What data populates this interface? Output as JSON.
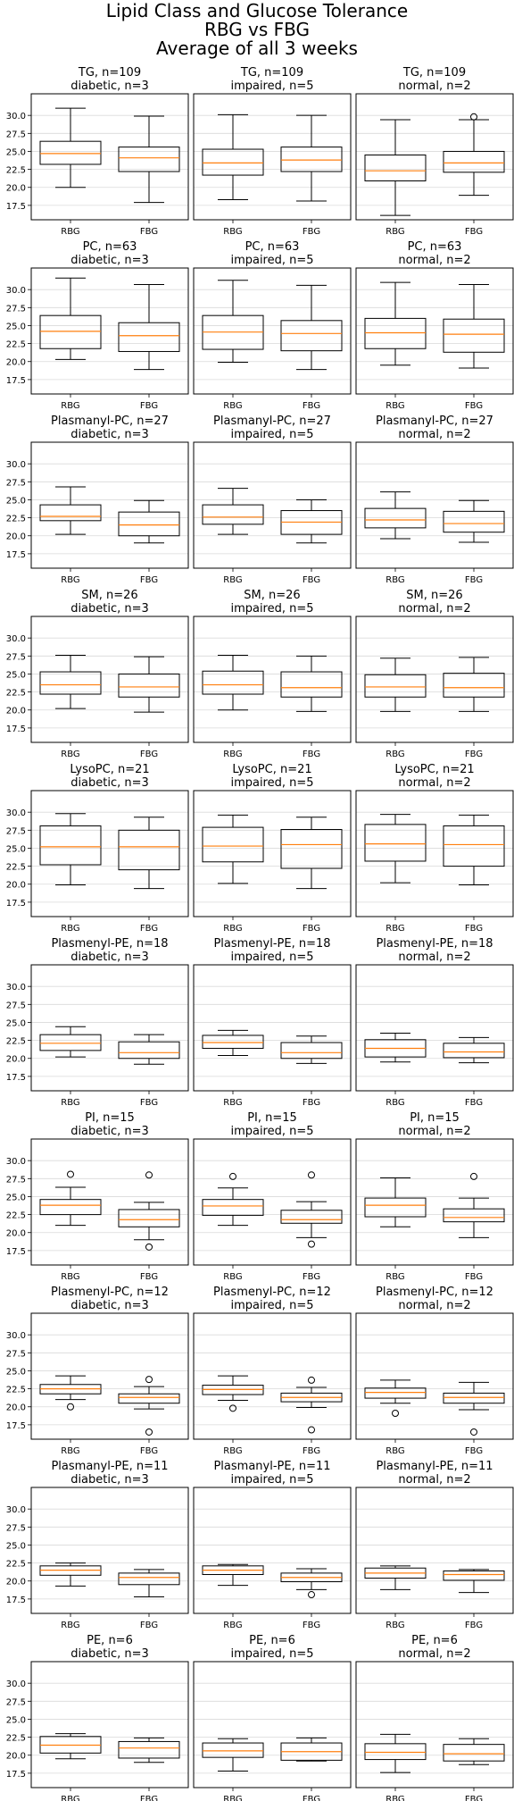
{
  "figure": {
    "title_lines": [
      "Lipid Class and Glucose Tolerance",
      "RBG vs FBG",
      "Average of all 3 weeks"
    ]
  },
  "chart_data": {
    "type": "boxplot",
    "categories": [
      "RBG",
      "FBG"
    ],
    "ylim": [
      15.5,
      33.0
    ],
    "yticks": [
      17.5,
      20.0,
      22.5,
      25.0,
      27.5,
      30.0
    ],
    "ytick_labels": [
      "17.5",
      "20.0",
      "22.5",
      "25.0",
      "27.5",
      "30.0"
    ],
    "grid": "horizontal",
    "colors": {
      "median": "#ff7f0e",
      "box": "#000000",
      "grid": "#d9d9d9",
      "flier": "#000000"
    },
    "groups": [
      "diabetic, n=3",
      "impaired, n=5",
      "normal, n=2"
    ],
    "rows": [
      {
        "label": "TG, n=109",
        "panels": [
          [
            {
              "whislo": 20.0,
              "q1": 23.2,
              "med": 24.7,
              "q3": 26.4,
              "whishi": 31.0,
              "fliers": []
            },
            {
              "whislo": 17.9,
              "q1": 22.2,
              "med": 24.1,
              "q3": 25.6,
              "whishi": 29.9,
              "fliers": []
            }
          ],
          [
            {
              "whislo": 18.3,
              "q1": 21.7,
              "med": 23.4,
              "q3": 25.3,
              "whishi": 30.1,
              "fliers": []
            },
            {
              "whislo": 18.1,
              "q1": 22.2,
              "med": 23.8,
              "q3": 25.6,
              "whishi": 30.0,
              "fliers": []
            }
          ],
          [
            {
              "whislo": 16.1,
              "q1": 20.9,
              "med": 22.3,
              "q3": 24.5,
              "whishi": 29.4,
              "fliers": []
            },
            {
              "whislo": 18.9,
              "q1": 22.1,
              "med": 23.4,
              "q3": 25.0,
              "whishi": 29.4,
              "fliers": [
                29.8
              ]
            }
          ]
        ]
      },
      {
        "label": "PC, n=63",
        "panels": [
          [
            {
              "whislo": 20.3,
              "q1": 21.8,
              "med": 24.2,
              "q3": 26.4,
              "whishi": 31.6,
              "fliers": []
            },
            {
              "whislo": 18.9,
              "q1": 21.4,
              "med": 23.6,
              "q3": 25.4,
              "whishi": 30.7,
              "fliers": []
            }
          ],
          [
            {
              "whislo": 19.9,
              "q1": 21.7,
              "med": 24.1,
              "q3": 26.4,
              "whishi": 31.3,
              "fliers": []
            },
            {
              "whislo": 18.9,
              "q1": 21.5,
              "med": 23.9,
              "q3": 25.7,
              "whishi": 30.6,
              "fliers": []
            }
          ],
          [
            {
              "whislo": 19.5,
              "q1": 21.8,
              "med": 24.0,
              "q3": 26.0,
              "whishi": 31.0,
              "fliers": []
            },
            {
              "whislo": 19.1,
              "q1": 21.3,
              "med": 23.8,
              "q3": 25.9,
              "whishi": 30.7,
              "fliers": []
            }
          ]
        ]
      },
      {
        "label": "Plasmanyl-PC, n=27",
        "panels": [
          [
            {
              "whislo": 20.2,
              "q1": 22.1,
              "med": 22.7,
              "q3": 24.3,
              "whishi": 26.8,
              "fliers": []
            },
            {
              "whislo": 19.0,
              "q1": 20.0,
              "med": 21.5,
              "q3": 23.3,
              "whishi": 24.9,
              "fliers": []
            }
          ],
          [
            {
              "whislo": 20.2,
              "q1": 21.6,
              "med": 22.6,
              "q3": 24.3,
              "whishi": 26.6,
              "fliers": []
            },
            {
              "whislo": 19.0,
              "q1": 20.2,
              "med": 21.9,
              "q3": 23.5,
              "whishi": 25.0,
              "fliers": []
            }
          ],
          [
            {
              "whislo": 19.6,
              "q1": 21.1,
              "med": 22.2,
              "q3": 23.8,
              "whishi": 26.1,
              "fliers": []
            },
            {
              "whislo": 19.1,
              "q1": 20.5,
              "med": 21.7,
              "q3": 23.4,
              "whishi": 24.9,
              "fliers": []
            }
          ]
        ]
      },
      {
        "label": "SM, n=26",
        "panels": [
          [
            {
              "whislo": 20.2,
              "q1": 22.2,
              "med": 23.5,
              "q3": 25.3,
              "whishi": 27.6,
              "fliers": []
            },
            {
              "whislo": 19.7,
              "q1": 21.8,
              "med": 23.2,
              "q3": 25.0,
              "whishi": 27.4,
              "fliers": []
            }
          ],
          [
            {
              "whislo": 20.0,
              "q1": 22.2,
              "med": 23.5,
              "q3": 25.4,
              "whishi": 27.6,
              "fliers": []
            },
            {
              "whislo": 19.8,
              "q1": 21.8,
              "med": 23.1,
              "q3": 25.3,
              "whishi": 27.5,
              "fliers": []
            }
          ],
          [
            {
              "whislo": 19.8,
              "q1": 21.8,
              "med": 23.2,
              "q3": 24.9,
              "whishi": 27.2,
              "fliers": []
            },
            {
              "whislo": 19.8,
              "q1": 21.8,
              "med": 23.1,
              "q3": 25.1,
              "whishi": 27.3,
              "fliers": []
            }
          ]
        ]
      },
      {
        "label": "LysoPC, n=21",
        "panels": [
          [
            {
              "whislo": 19.9,
              "q1": 22.7,
              "med": 25.2,
              "q3": 28.1,
              "whishi": 29.8,
              "fliers": []
            },
            {
              "whislo": 19.4,
              "q1": 22.0,
              "med": 25.2,
              "q3": 27.5,
              "whishi": 29.3,
              "fliers": []
            }
          ],
          [
            {
              "whislo": 20.1,
              "q1": 23.1,
              "med": 25.3,
              "q3": 27.9,
              "whishi": 29.6,
              "fliers": []
            },
            {
              "whislo": 19.4,
              "q1": 22.2,
              "med": 25.5,
              "q3": 27.6,
              "whishi": 29.3,
              "fliers": []
            }
          ],
          [
            {
              "whislo": 20.2,
              "q1": 23.2,
              "med": 25.6,
              "q3": 28.3,
              "whishi": 29.7,
              "fliers": []
            },
            {
              "whislo": 19.9,
              "q1": 22.5,
              "med": 25.5,
              "q3": 28.1,
              "whishi": 29.6,
              "fliers": []
            }
          ]
        ]
      },
      {
        "label": "Plasmenyl-PE, n=18",
        "panels": [
          [
            {
              "whislo": 20.2,
              "q1": 21.1,
              "med": 22.1,
              "q3": 23.3,
              "whishi": 24.4,
              "fliers": []
            },
            {
              "whislo": 19.2,
              "q1": 20.0,
              "med": 20.8,
              "q3": 22.3,
              "whishi": 23.3,
              "fliers": []
            }
          ],
          [
            {
              "whislo": 20.4,
              "q1": 21.4,
              "med": 22.2,
              "q3": 23.2,
              "whishi": 23.9,
              "fliers": []
            },
            {
              "whislo": 19.3,
              "q1": 20.0,
              "med": 20.8,
              "q3": 22.2,
              "whishi": 23.1,
              "fliers": []
            }
          ],
          [
            {
              "whislo": 19.5,
              "q1": 20.2,
              "med": 21.4,
              "q3": 22.6,
              "whishi": 23.5,
              "fliers": []
            },
            {
              "whislo": 19.4,
              "q1": 20.1,
              "med": 20.9,
              "q3": 22.1,
              "whishi": 22.9,
              "fliers": []
            }
          ]
        ]
      },
      {
        "label": "PI, n=15",
        "panels": [
          [
            {
              "whislo": 21.0,
              "q1": 22.5,
              "med": 23.8,
              "q3": 24.6,
              "whishi": 26.3,
              "fliers": [
                28.1
              ]
            },
            {
              "whislo": 19.0,
              "q1": 20.8,
              "med": 21.8,
              "q3": 23.2,
              "whishi": 24.2,
              "fliers": [
                18.0,
                28.0
              ]
            }
          ],
          [
            {
              "whislo": 21.0,
              "q1": 22.4,
              "med": 23.7,
              "q3": 24.6,
              "whishi": 26.2,
              "fliers": [
                27.8
              ]
            },
            {
              "whislo": 19.3,
              "q1": 21.3,
              "med": 21.8,
              "q3": 23.1,
              "whishi": 24.3,
              "fliers": [
                18.4,
                28.0
              ]
            }
          ],
          [
            {
              "whislo": 20.8,
              "q1": 22.2,
              "med": 23.8,
              "q3": 24.8,
              "whishi": 27.6,
              "fliers": []
            },
            {
              "whislo": 19.3,
              "q1": 21.5,
              "med": 22.1,
              "q3": 23.3,
              "whishi": 24.8,
              "fliers": [
                27.8
              ]
            }
          ]
        ]
      },
      {
        "label": "Plasmenyl-PC, n=12",
        "panels": [
          [
            {
              "whislo": 21.0,
              "q1": 21.8,
              "med": 22.5,
              "q3": 23.1,
              "whishi": 24.3,
              "fliers": [
                20.0
              ]
            },
            {
              "whislo": 19.7,
              "q1": 20.5,
              "med": 21.3,
              "q3": 21.8,
              "whishi": 22.8,
              "fliers": [
                16.5,
                23.8
              ]
            }
          ],
          [
            {
              "whislo": 20.9,
              "q1": 21.7,
              "med": 22.4,
              "q3": 23.0,
              "whishi": 24.3,
              "fliers": [
                19.8
              ]
            },
            {
              "whislo": 19.9,
              "q1": 20.7,
              "med": 21.3,
              "q3": 21.9,
              "whishi": 22.7,
              "fliers": [
                16.8,
                23.7
              ]
            }
          ],
          [
            {
              "whislo": 20.5,
              "q1": 21.2,
              "med": 22.0,
              "q3": 22.6,
              "whishi": 23.7,
              "fliers": [
                19.1
              ]
            },
            {
              "whislo": 19.6,
              "q1": 20.5,
              "med": 21.3,
              "q3": 21.9,
              "whishi": 23.4,
              "fliers": [
                16.5
              ]
            }
          ]
        ]
      },
      {
        "label": "Plasmanyl-PE, n=11",
        "panels": [
          [
            {
              "whislo": 19.3,
              "q1": 20.8,
              "med": 21.5,
              "q3": 22.1,
              "whishi": 22.5,
              "fliers": []
            },
            {
              "whislo": 17.8,
              "q1": 19.5,
              "med": 20.5,
              "q3": 21.1,
              "whishi": 21.6,
              "fliers": []
            }
          ],
          [
            {
              "whislo": 19.4,
              "q1": 20.9,
              "med": 21.5,
              "q3": 22.1,
              "whishi": 22.3,
              "fliers": []
            },
            {
              "whislo": 18.8,
              "q1": 19.9,
              "med": 20.5,
              "q3": 21.1,
              "whishi": 21.7,
              "fliers": [
                18.1
              ]
            }
          ],
          [
            {
              "whislo": 18.8,
              "q1": 20.4,
              "med": 21.1,
              "q3": 21.8,
              "whishi": 22.1,
              "fliers": []
            },
            {
              "whislo": 18.4,
              "q1": 20.1,
              "med": 20.9,
              "q3": 21.4,
              "whishi": 21.6,
              "fliers": []
            }
          ]
        ]
      },
      {
        "label": "PE, n=6",
        "panels": [
          [
            {
              "whislo": 19.5,
              "q1": 20.3,
              "med": 21.4,
              "q3": 22.6,
              "whishi": 23.0,
              "fliers": []
            },
            {
              "whislo": 19.0,
              "q1": 19.6,
              "med": 21.0,
              "q3": 21.9,
              "whishi": 22.4,
              "fliers": []
            }
          ],
          [
            {
              "whislo": 17.8,
              "q1": 19.7,
              "med": 20.6,
              "q3": 21.7,
              "whishi": 22.3,
              "fliers": []
            },
            {
              "whislo": 19.2,
              "q1": 19.3,
              "med": 20.5,
              "q3": 21.7,
              "whishi": 22.4,
              "fliers": []
            }
          ],
          [
            {
              "whislo": 17.6,
              "q1": 19.4,
              "med": 20.4,
              "q3": 21.6,
              "whishi": 22.9,
              "fliers": []
            },
            {
              "whislo": 18.7,
              "q1": 19.2,
              "med": 20.2,
              "q3": 21.5,
              "whishi": 22.3,
              "fliers": []
            }
          ]
        ]
      }
    ]
  }
}
